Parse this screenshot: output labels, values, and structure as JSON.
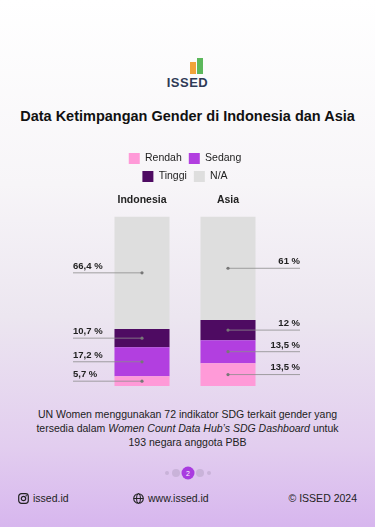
{
  "header": {
    "logo": "ISSED",
    "title": "Data Ketimpangan Gender di Indonesia dan Asia"
  },
  "chart_data": {
    "type": "bar",
    "stacked": true,
    "categories": [
      "Indonesia",
      "Asia"
    ],
    "series": [
      {
        "name": "Rendah",
        "color": "#ff9ad8",
        "values": [
          5.7,
          13.5
        ],
        "value_labels": [
          "5,7 %",
          "13,5 %"
        ]
      },
      {
        "name": "Sedang",
        "color": "#b23fe0",
        "values": [
          17.2,
          13.5
        ],
        "value_labels": [
          "17,2 %",
          "13,5 %"
        ]
      },
      {
        "name": "Tinggi",
        "color": "#4e0b62",
        "values": [
          10.7,
          12
        ],
        "value_labels": [
          "10,7 %",
          "12 %"
        ]
      },
      {
        "name": "N/A",
        "color": "#dedede",
        "values": [
          66.4,
          61
        ],
        "value_labels": [
          "66,4 %",
          "61 %"
        ]
      }
    ],
    "ylim": [
      0,
      100
    ],
    "grid": false,
    "legend": "top",
    "data_labels": true,
    "tick_labels": "x"
  },
  "caption": {
    "before": "UN Women menggunakan 72 indikator SDG terkait gender yang tersedia dalam ",
    "emphasis": "Women Count Data Hub’s SDG Dashboard",
    "after": " untuk 193 negara anggota PBB"
  },
  "page": "2",
  "footer": {
    "instagram": "issed.id",
    "website": "www.issed.id",
    "copyright": "© ISSED 2024"
  }
}
